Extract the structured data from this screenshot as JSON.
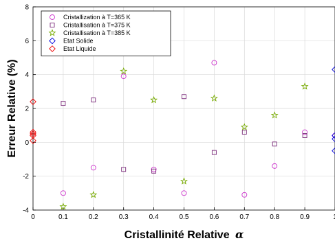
{
  "chart_data": {
    "type": "scatter",
    "title": "",
    "xlabel": "Cristallinité Relative",
    "xlabel_symbol": "α",
    "ylabel": "Erreur Relative (%)",
    "xlim": [
      0,
      1
    ],
    "ylim": [
      -4,
      8
    ],
    "xticks": [
      "0",
      "0.1",
      "0.2",
      "0.3",
      "0.4",
      "0.5",
      "0.6",
      "0.7",
      "0.8",
      "0.9",
      "1"
    ],
    "yticks": [
      "-4",
      "-2",
      "0",
      "2",
      "4",
      "6",
      "8"
    ],
    "grid": true,
    "legend_position": "top-left",
    "series": [
      {
        "name": "Cristallization à T=365 K",
        "marker": "circle",
        "color": "#cc33cc",
        "points": [
          [
            0.1,
            -3.0
          ],
          [
            0.2,
            -1.5
          ],
          [
            0.3,
            3.9
          ],
          [
            0.4,
            -1.6
          ],
          [
            0.5,
            -3.0
          ],
          [
            0.6,
            4.7
          ],
          [
            0.7,
            -3.1
          ],
          [
            0.8,
            -1.4
          ],
          [
            0.9,
            0.6
          ],
          [
            1.0,
            0.4
          ]
        ]
      },
      {
        "name": "Cristallisation à T=375 K",
        "marker": "square",
        "color": "#7a2a7a",
        "points": [
          [
            0.1,
            2.3
          ],
          [
            0.2,
            2.5
          ],
          [
            0.3,
            -1.6
          ],
          [
            0.4,
            -1.7
          ],
          [
            0.5,
            2.7
          ],
          [
            0.6,
            -0.6
          ],
          [
            0.7,
            0.6
          ],
          [
            0.8,
            -0.1
          ],
          [
            0.9,
            0.4
          ]
        ]
      },
      {
        "name": "Cristallisation à T=385 K",
        "marker": "star",
        "color": "#77aa00",
        "points": [
          [
            0.1,
            -3.8
          ],
          [
            0.2,
            -3.1
          ],
          [
            0.3,
            4.2
          ],
          [
            0.4,
            2.5
          ],
          [
            0.5,
            -2.3
          ],
          [
            0.6,
            2.6
          ],
          [
            0.7,
            0.9
          ],
          [
            0.8,
            1.6
          ],
          [
            0.9,
            3.3
          ]
        ]
      },
      {
        "name": "Etat Solide",
        "marker": "diamond",
        "color": "#0000dd",
        "points": [
          [
            1.0,
            4.3
          ],
          [
            1.0,
            0.4
          ],
          [
            1.0,
            0.2
          ],
          [
            1.0,
            -0.5
          ]
        ]
      },
      {
        "name": "Etat Liquide",
        "marker": "diamond",
        "color": "#ee0000",
        "points": [
          [
            0.0,
            2.4
          ],
          [
            0.0,
            0.6
          ],
          [
            0.0,
            0.5
          ],
          [
            0.0,
            0.4
          ],
          [
            0.0,
            0.1
          ]
        ]
      }
    ]
  }
}
